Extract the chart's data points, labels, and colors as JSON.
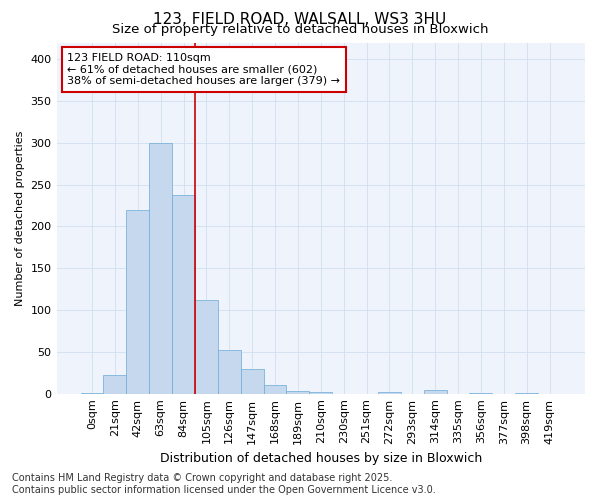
{
  "title1": "123, FIELD ROAD, WALSALL, WS3 3HU",
  "title2": "Size of property relative to detached houses in Bloxwich",
  "xlabel": "Distribution of detached houses by size in Bloxwich",
  "ylabel": "Number of detached properties",
  "bar_labels": [
    "0sqm",
    "21sqm",
    "42sqm",
    "63sqm",
    "84sqm",
    "105sqm",
    "126sqm",
    "147sqm",
    "168sqm",
    "189sqm",
    "210sqm",
    "230sqm",
    "251sqm",
    "272sqm",
    "293sqm",
    "314sqm",
    "335sqm",
    "356sqm",
    "377sqm",
    "398sqm",
    "419sqm"
  ],
  "bar_values": [
    1,
    22,
    220,
    300,
    238,
    112,
    52,
    30,
    10,
    3,
    2,
    0,
    0,
    2,
    0,
    4,
    0,
    1,
    0,
    1,
    0
  ],
  "bar_color": "#c5d8ee",
  "bar_edge_color": "#6baad8",
  "grid_color": "#d0dff0",
  "bg_color": "#eef3fc",
  "vline_color": "#cc0000",
  "annotation_text": "123 FIELD ROAD: 110sqm\n← 61% of detached houses are smaller (602)\n38% of semi-detached houses are larger (379) →",
  "annotation_box_color": "#ffffff",
  "annotation_box_edge": "#cc0000",
  "footer": "Contains HM Land Registry data © Crown copyright and database right 2025.\nContains public sector information licensed under the Open Government Licence v3.0.",
  "ylim": [
    0,
    420
  ],
  "yticks": [
    0,
    50,
    100,
    150,
    200,
    250,
    300,
    350,
    400
  ],
  "title1_fontsize": 11,
  "title2_fontsize": 9.5,
  "tick_fontsize": 8,
  "ylabel_fontsize": 8,
  "xlabel_fontsize": 9,
  "footer_fontsize": 7,
  "annot_fontsize": 8
}
